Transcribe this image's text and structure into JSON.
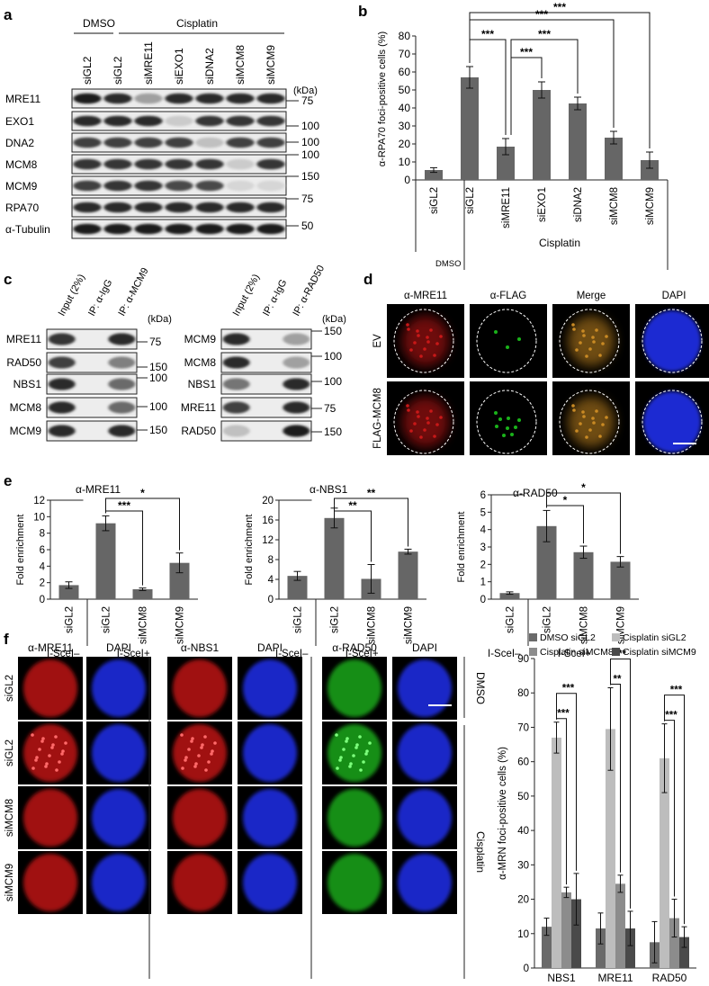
{
  "panels": {
    "a": {
      "letter": "a",
      "treatment_labels": [
        "DMSO",
        "Cisplatin"
      ],
      "lanes": [
        "siGL2",
        "siGL2",
        "siMRE11",
        "siEXO1",
        "siDNA2",
        "siMCM8",
        "siMCM9"
      ],
      "kda_header": "(kDa)",
      "blots": [
        {
          "name": "MRE11",
          "marker": "75"
        },
        {
          "name": "EXO1",
          "marker": "100"
        },
        {
          "name": "DNA2",
          "marker": "100"
        },
        {
          "name": "MCM8",
          "marker": "100"
        },
        {
          "name": "MCM9",
          "marker": "150"
        },
        {
          "name": "RPA70",
          "marker": "75"
        },
        {
          "name": "α-Tubulin",
          "marker": "50"
        }
      ],
      "band_intensity": [
        [
          0.95,
          0.9,
          0.35,
          0.9,
          0.9,
          0.9,
          0.9
        ],
        [
          0.9,
          0.9,
          0.9,
          0.15,
          0.85,
          0.85,
          0.85
        ],
        [
          0.8,
          0.8,
          0.8,
          0.8,
          0.2,
          0.8,
          0.8
        ],
        [
          0.85,
          0.85,
          0.85,
          0.85,
          0.85,
          0.15,
          0.85
        ],
        [
          0.8,
          0.85,
          0.85,
          0.75,
          0.75,
          0.1,
          0.1
        ],
        [
          0.9,
          0.9,
          0.9,
          0.9,
          0.9,
          0.9,
          0.9
        ],
        [
          0.95,
          0.95,
          0.95,
          0.95,
          0.95,
          0.95,
          0.95
        ]
      ]
    },
    "b": {
      "letter": "b",
      "ylabel": "α-RPA70 foci-positive cells (%)",
      "group_labels": [
        "DMSO",
        "Cisplatin"
      ],
      "sig": [
        "***",
        "***",
        "***",
        "***",
        "***"
      ]
    },
    "c": {
      "letter": "c",
      "kda_header": "(kDa)",
      "left": {
        "lanes": [
          "Input (2%)",
          "IP: α-IgG",
          "IP: α-MCM9"
        ],
        "blots": [
          {
            "name": "MRE11",
            "marker": "75"
          },
          {
            "name": "RAD50",
            "marker": "150"
          },
          {
            "name": "NBS1",
            "marker": "100"
          },
          {
            "name": "MCM8",
            "marker": "100"
          },
          {
            "name": "MCM9",
            "marker": "150"
          }
        ],
        "band_intensity": [
          [
            0.85,
            0.0,
            0.9
          ],
          [
            0.8,
            0.0,
            0.5
          ],
          [
            0.9,
            0.0,
            0.6
          ],
          [
            0.9,
            0.0,
            0.6
          ],
          [
            0.9,
            0.0,
            0.9
          ]
        ]
      },
      "right": {
        "lanes": [
          "Input (2%)",
          "IP: α-IgG",
          "IP: α-RAD50"
        ],
        "blots": [
          {
            "name": "MCM9",
            "marker": "150"
          },
          {
            "name": "MCM8",
            "marker": "100"
          },
          {
            "name": "NBS1",
            "marker": "100"
          },
          {
            "name": "MRE11",
            "marker": "75"
          },
          {
            "name": "RAD50",
            "marker": "150"
          }
        ],
        "band_intensity": [
          [
            0.9,
            0.0,
            0.35
          ],
          [
            0.9,
            0.0,
            0.35
          ],
          [
            0.55,
            0.0,
            0.9
          ],
          [
            0.8,
            0.0,
            0.9
          ],
          [
            0.2,
            0.0,
            0.95
          ]
        ]
      }
    },
    "d": {
      "letter": "d",
      "columns": [
        "α-MRE11",
        "α-FLAG",
        "Merge",
        "DAPI"
      ],
      "rows": [
        "EV",
        "FLAG-MCM8"
      ],
      "colors": {
        "red": "#c81818",
        "green": "#1ab21a",
        "blue": "#1f2ad2",
        "merge": "#c98a24"
      }
    },
    "e": {
      "letter": "e",
      "ylabel": "Fold enrichment",
      "group_labels": [
        "I-SceI–",
        "I-SceI+"
      ],
      "subpanel_sig": [
        [
          "***",
          "*"
        ],
        [
          "**",
          "**"
        ],
        [
          "*",
          "*"
        ]
      ]
    },
    "f": {
      "letter": "f",
      "columns": [
        "α-MRE11",
        "DAPI",
        "α-NBS1",
        "DAPI",
        "α-RAD50",
        "DAPI"
      ],
      "rows": [
        "siGL2",
        "siGL2",
        "siMCM8",
        "siMCM9"
      ],
      "side_labels": [
        "DMSO",
        "Cisplatin"
      ],
      "legend": [
        "DMSO siGL2",
        "Cisplatin siGL2",
        "Cisplatin siMCM8",
        "Cisplatin siMCM9"
      ],
      "ylabel": "α-MRN foci-positive cells (%)",
      "sig": [
        [
          "***",
          "***"
        ],
        [
          "**",
          "**"
        ],
        [
          "***",
          "***"
        ]
      ]
    }
  },
  "chart_data": [
    {
      "id": "b",
      "type": "bar",
      "categories": [
        "siGL2",
        "siGL2",
        "siMRE11",
        "siEXO1",
        "siDNA2",
        "siMCM8",
        "siMCM9"
      ],
      "values": [
        5.5,
        57,
        18.5,
        50,
        42.5,
        23.5,
        11
      ],
      "errors": [
        1.3,
        6,
        4.5,
        4.5,
        3.5,
        3.5,
        4.5
      ],
      "ylim": [
        0,
        80
      ],
      "yticks": [
        0,
        10,
        20,
        30,
        40,
        50,
        60,
        70,
        80
      ],
      "ylabel": "α-RPA70 foci-positive cells (%)",
      "color": "#666666"
    },
    {
      "id": "e-mre11",
      "type": "bar",
      "title": "α-MRE11",
      "categories": [
        "siGL2",
        "siGL2",
        "siMCM8",
        "siMCM9"
      ],
      "values": [
        1.7,
        9.2,
        1.2,
        4.4
      ],
      "errors": [
        0.4,
        0.9,
        0.15,
        1.2
      ],
      "ylim": [
        0,
        12
      ],
      "yticks": [
        0,
        2,
        4,
        6,
        8,
        10,
        12
      ],
      "ylabel": "Fold enrichment"
    },
    {
      "id": "e-nbs1",
      "type": "bar",
      "title": "α-NBS1",
      "categories": [
        "siGL2",
        "siGL2",
        "siMCM8",
        "siMCM9"
      ],
      "values": [
        4.7,
        16.4,
        4.1,
        9.6
      ],
      "errors": [
        0.9,
        2.0,
        2.9,
        0.5
      ],
      "ylim": [
        0,
        20
      ],
      "yticks": [
        0,
        4,
        8,
        12,
        16,
        20
      ],
      "ylabel": "Fold enrichment"
    },
    {
      "id": "e-rad50",
      "type": "bar",
      "title": "α-RAD50",
      "categories": [
        "siGL2",
        "siGL2",
        "siMCM8",
        "siMCM9"
      ],
      "values": [
        0.35,
        4.2,
        2.7,
        2.15
      ],
      "errors": [
        0.07,
        0.9,
        0.35,
        0.3
      ],
      "ylim": [
        0,
        6
      ],
      "yticks": [
        0,
        1,
        2,
        3,
        4,
        5,
        6
      ],
      "ylabel": "Fold enrichment"
    },
    {
      "id": "f",
      "type": "bar",
      "categories": [
        "NBS1",
        "MRE11",
        "RAD50"
      ],
      "series": [
        {
          "name": "DMSO siGL2",
          "values": [
            12,
            11.5,
            7.5
          ],
          "errors": [
            2.5,
            4.5,
            6
          ],
          "color": "#6a6a6a"
        },
        {
          "name": "Cisplatin siGL2",
          "values": [
            67,
            69.5,
            61
          ],
          "errors": [
            4.5,
            12,
            10
          ],
          "color": "#bdbdbd"
        },
        {
          "name": "Cisplatin siMCM8",
          "values": [
            22,
            24.5,
            14.5
          ],
          "errors": [
            1.5,
            2.5,
            5.5
          ],
          "color": "#8c8c8c"
        },
        {
          "name": "Cisplatin siMCM9",
          "values": [
            20,
            11.5,
            9
          ],
          "errors": [
            7.5,
            5,
            3
          ],
          "color": "#4a4a4a"
        }
      ],
      "ylim": [
        0,
        90
      ],
      "yticks": [
        0,
        10,
        20,
        30,
        40,
        50,
        60,
        70,
        80,
        90
      ],
      "ylabel": "α-MRN foci-positive cells (%)",
      "legend": "top"
    }
  ]
}
